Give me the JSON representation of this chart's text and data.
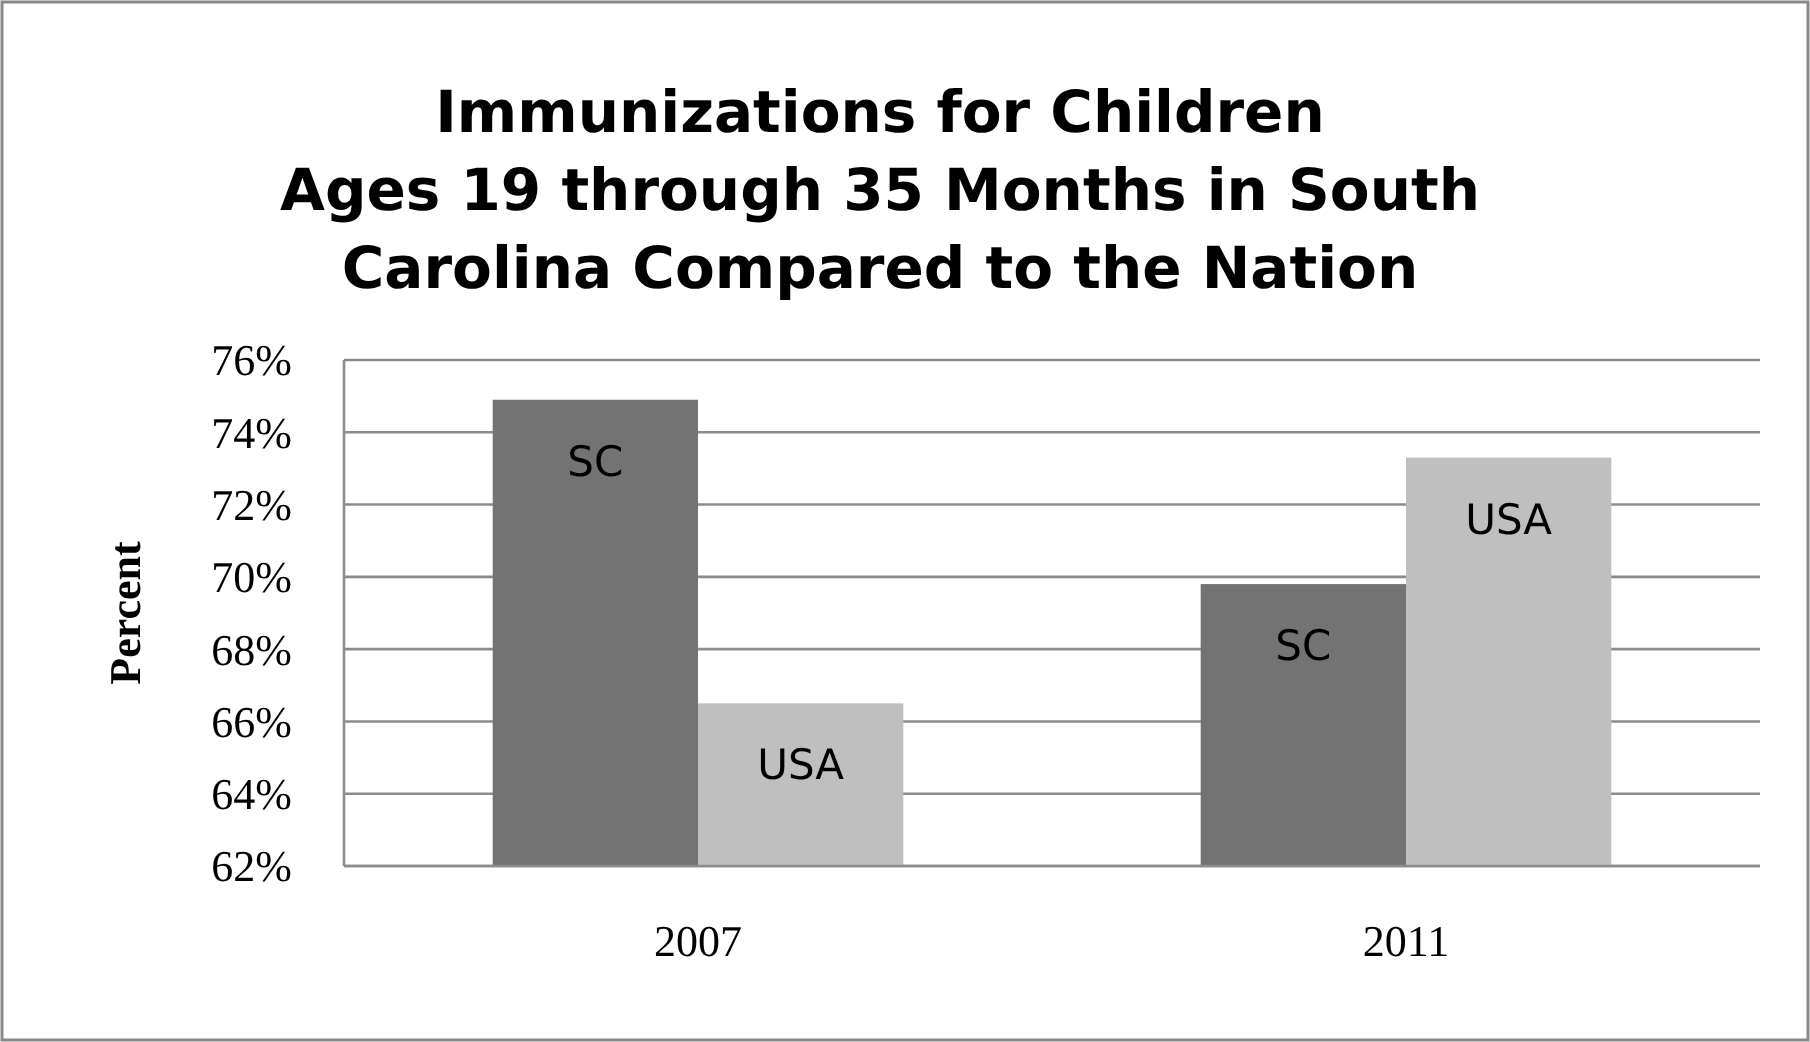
{
  "chart_data": {
    "type": "bar",
    "title": "Immunizations for Children\nAges 19 through 35 Months in South\nCarolina Compared to the Nation",
    "ylabel": "Percent",
    "categories": [
      "2007",
      "2011"
    ],
    "series": [
      {
        "name": "SC",
        "color": "#737373",
        "values": [
          74.9,
          69.8
        ]
      },
      {
        "name": "USA",
        "color": "#bfbfbf",
        "values": [
          66.5,
          73.3
        ]
      }
    ],
    "ylim": [
      62,
      76
    ],
    "yticks": [
      {
        "value": 62,
        "label": "62%"
      },
      {
        "value": 64,
        "label": "64%"
      },
      {
        "value": 66,
        "label": "66%"
      },
      {
        "value": 68,
        "label": "68%"
      },
      {
        "value": 70,
        "label": "70%"
      },
      {
        "value": 72,
        "label": "72%"
      },
      {
        "value": 74,
        "label": "74%"
      },
      {
        "value": 76,
        "label": "76%"
      }
    ],
    "grid": "y",
    "legend": false
  }
}
